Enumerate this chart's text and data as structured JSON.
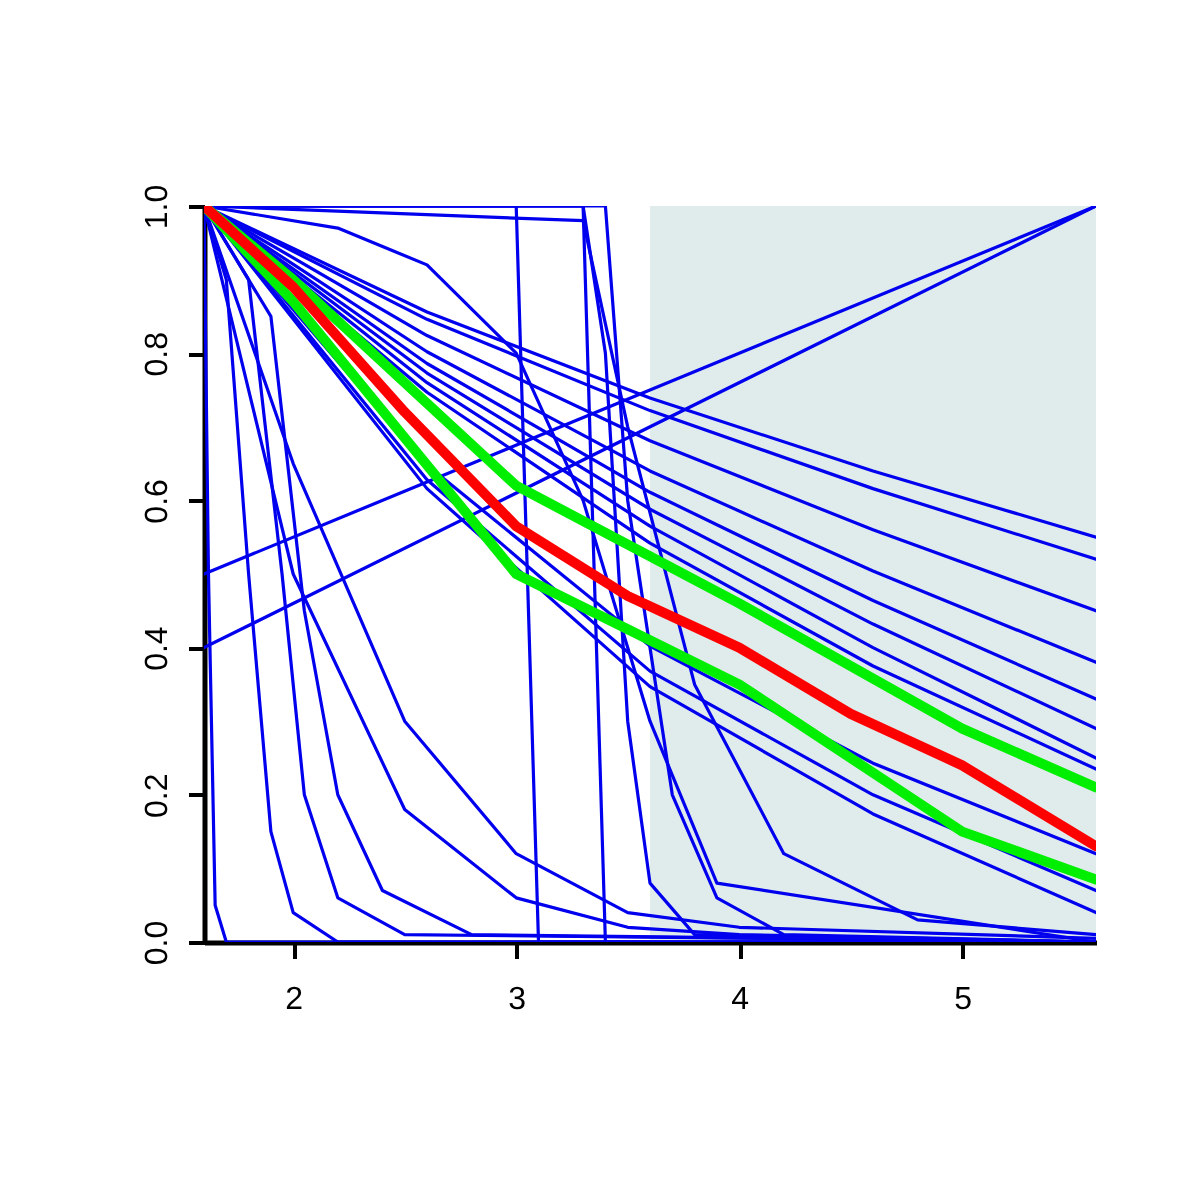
{
  "chart_data": {
    "type": "line",
    "xlim": [
      1.6,
      5.6
    ],
    "xticks": [
      2,
      3,
      4,
      5
    ],
    "ylim": [
      0,
      1
    ],
    "yticks": [
      {
        "value": 0,
        "label": "0.0"
      },
      0.2,
      0.4,
      0.6,
      0.8,
      {
        "value": 1,
        "label": "1.0"
      }
    ],
    "grid": false,
    "legend": false,
    "bands": [
      {
        "axis": "x",
        "from": 3.6,
        "to": 5.6,
        "color": "#e0ecec"
      }
    ],
    "series": [
      {
        "color": "#0000ee",
        "x": [
          1.6,
          2.6,
          3.6,
          4.6,
          5.6
        ],
        "values": [
          1,
          0.856,
          0.739,
          0.64,
          0.55
        ]
      },
      {
        "color": "#0000ee",
        "x": [
          1.6,
          2.6,
          3.6,
          4.6,
          5.6
        ],
        "values": [
          1,
          0.846,
          0.722,
          0.616,
          0.52
        ]
      },
      {
        "color": "#0000ee",
        "x": [
          1.6,
          2.6,
          3.6,
          4.6,
          5.6
        ],
        "values": [
          1,
          0.824,
          0.681,
          0.56,
          0.45
        ]
      },
      {
        "color": "#0000ee",
        "x": [
          1.6,
          2.6,
          3.6,
          4.6,
          5.6
        ],
        "values": [
          1,
          0.802,
          0.64,
          0.504,
          0.38
        ]
      },
      {
        "color": "#0000ee",
        "x": [
          1.6,
          2.6,
          3.6,
          4.6,
          5.6
        ],
        "values": [
          1,
          0.786,
          0.611,
          0.464,
          0.33
        ]
      },
      {
        "color": "#0000ee",
        "x": [
          1.6,
          2.6,
          3.6,
          4.6,
          5.6
        ],
        "values": [
          1,
          0.773,
          0.588,
          0.432,
          0.29
        ]
      },
      {
        "color": "#0000ee",
        "x": [
          1.6,
          2.6,
          3.6,
          4.6,
          5.6
        ],
        "values": [
          1,
          0.76,
          0.565,
          0.4,
          0.25
        ]
      },
      {
        "color": "#0000ee",
        "x": [
          1.6,
          2.6,
          3.6,
          4.6,
          5.6
        ],
        "values": [
          1,
          0.747,
          0.542,
          0.375,
          0.235
        ]
      },
      {
        "color": "#0000ee",
        "x": [
          1.6,
          2.6,
          3.6,
          4.6,
          5.6
        ],
        "values": [
          1,
          0.648,
          0.402,
          0.243,
          0.12
        ]
      },
      {
        "color": "#0000ee",
        "x": [
          1.6,
          2.6,
          3.6,
          4.6,
          5.6
        ],
        "values": [
          1,
          0.628,
          0.368,
          0.2,
          0.07
        ]
      },
      {
        "color": "#0000ee",
        "x": [
          1.6,
          2.6,
          3.6,
          4.6,
          5.6
        ],
        "values": [
          1,
          0.616,
          0.347,
          0.174,
          0.04
        ]
      },
      {
        "color": "#0000ee",
        "x": [
          1.6,
          5.6
        ],
        "values": [
          0.5,
          1
        ]
      },
      {
        "color": "#0000ee",
        "x": [
          1.6,
          5.6
        ],
        "values": [
          0.4,
          1
        ]
      },
      {
        "color": "#0000ee",
        "x": [
          1.6,
          1.62,
          1.65,
          1.7,
          5.6
        ],
        "values": [
          1,
          0.5,
          0.05,
          0,
          0
        ]
      },
      {
        "color": "#0000ee",
        "x": [
          1.6,
          1.7,
          1.8,
          1.9,
          2.0,
          2.2,
          5.6
        ],
        "values": [
          1,
          0.9,
          0.5,
          0.15,
          0.04,
          0,
          0
        ]
      },
      {
        "color": "#0000ee",
        "x": [
          1.6,
          1.8,
          1.95,
          2.05,
          2.2,
          2.5,
          5.6
        ],
        "values": [
          1,
          0.9,
          0.5,
          0.2,
          0.06,
          0.01,
          0
        ]
      },
      {
        "color": "#0000ee",
        "x": [
          1.6,
          1.9,
          2.05,
          2.2,
          2.4,
          2.8,
          5.6
        ],
        "values": [
          1,
          0.85,
          0.45,
          0.2,
          0.07,
          0.01,
          0
        ]
      },
      {
        "color": "#0000ee",
        "x": [
          1.6,
          2,
          2.5,
          3,
          3.5,
          4,
          5.6
        ],
        "values": [
          1,
          0.5,
          0.18,
          0.06,
          0.02,
          0.01,
          0
        ]
      },
      {
        "color": "#0000ee",
        "x": [
          1.6,
          2,
          2.5,
          3,
          3.5,
          4,
          5.6
        ],
        "values": [
          1,
          0.65,
          0.3,
          0.12,
          0.04,
          0.02,
          0.005
        ]
      },
      {
        "color": "#0000ee",
        "x": [
          1.6,
          2.2,
          2.6,
          3,
          3.3,
          3.6,
          3.9,
          5.6
        ],
        "values": [
          1,
          0.97,
          0.92,
          0.8,
          0.6,
          0.3,
          0.08,
          0
        ]
      },
      {
        "color": "#0000ee",
        "x": [
          1.6,
          3.0,
          3.05,
          3.1,
          5.6
        ],
        "values": [
          1,
          1,
          0.5,
          0,
          0
        ]
      },
      {
        "color": "#0000ee",
        "x": [
          1.6,
          3.3,
          3.35,
          3.4,
          5.6
        ],
        "values": [
          1,
          1,
          0.5,
          0,
          0
        ]
      },
      {
        "color": "#0000ee",
        "x": [
          1.6,
          3.3,
          3.4,
          3.5,
          3.6,
          3.8,
          5.6
        ],
        "values": [
          1,
          1,
          0.8,
          0.3,
          0.08,
          0.01,
          0
        ]
      },
      {
        "color": "#0000ee",
        "x": [
          1.6,
          3.4,
          3.5,
          3.7,
          3.9,
          4.2,
          5.6
        ],
        "values": [
          1,
          1,
          0.6,
          0.2,
          0.06,
          0.01,
          0
        ]
      },
      {
        "color": "#0000ee",
        "x": [
          1.6,
          3.3,
          3.5,
          3.8,
          4.2,
          4.8,
          5.6
        ],
        "values": [
          1,
          0.98,
          0.7,
          0.35,
          0.12,
          0.03,
          0.01
        ]
      },
      {
        "color": "#00ee00",
        "x": [
          1.6,
          2,
          3,
          4,
          5,
          5.6
        ],
        "values": [
          1,
          0.9,
          0.62,
          0.46,
          0.29,
          0.21
        ]
      },
      {
        "color": "#00ee00",
        "x": [
          1.6,
          2,
          3,
          4,
          5,
          5.6
        ],
        "values": [
          1,
          0.87,
          0.5,
          0.35,
          0.15,
          0.085
        ]
      },
      {
        "color": "#ff0000",
        "x": [
          1.6,
          2,
          2.5,
          3,
          3.5,
          4,
          4.5,
          5,
          5.6
        ],
        "values": [
          1,
          0.89,
          0.72,
          0.565,
          0.47,
          0.4,
          0.31,
          0.24,
          0.13
        ]
      }
    ]
  }
}
